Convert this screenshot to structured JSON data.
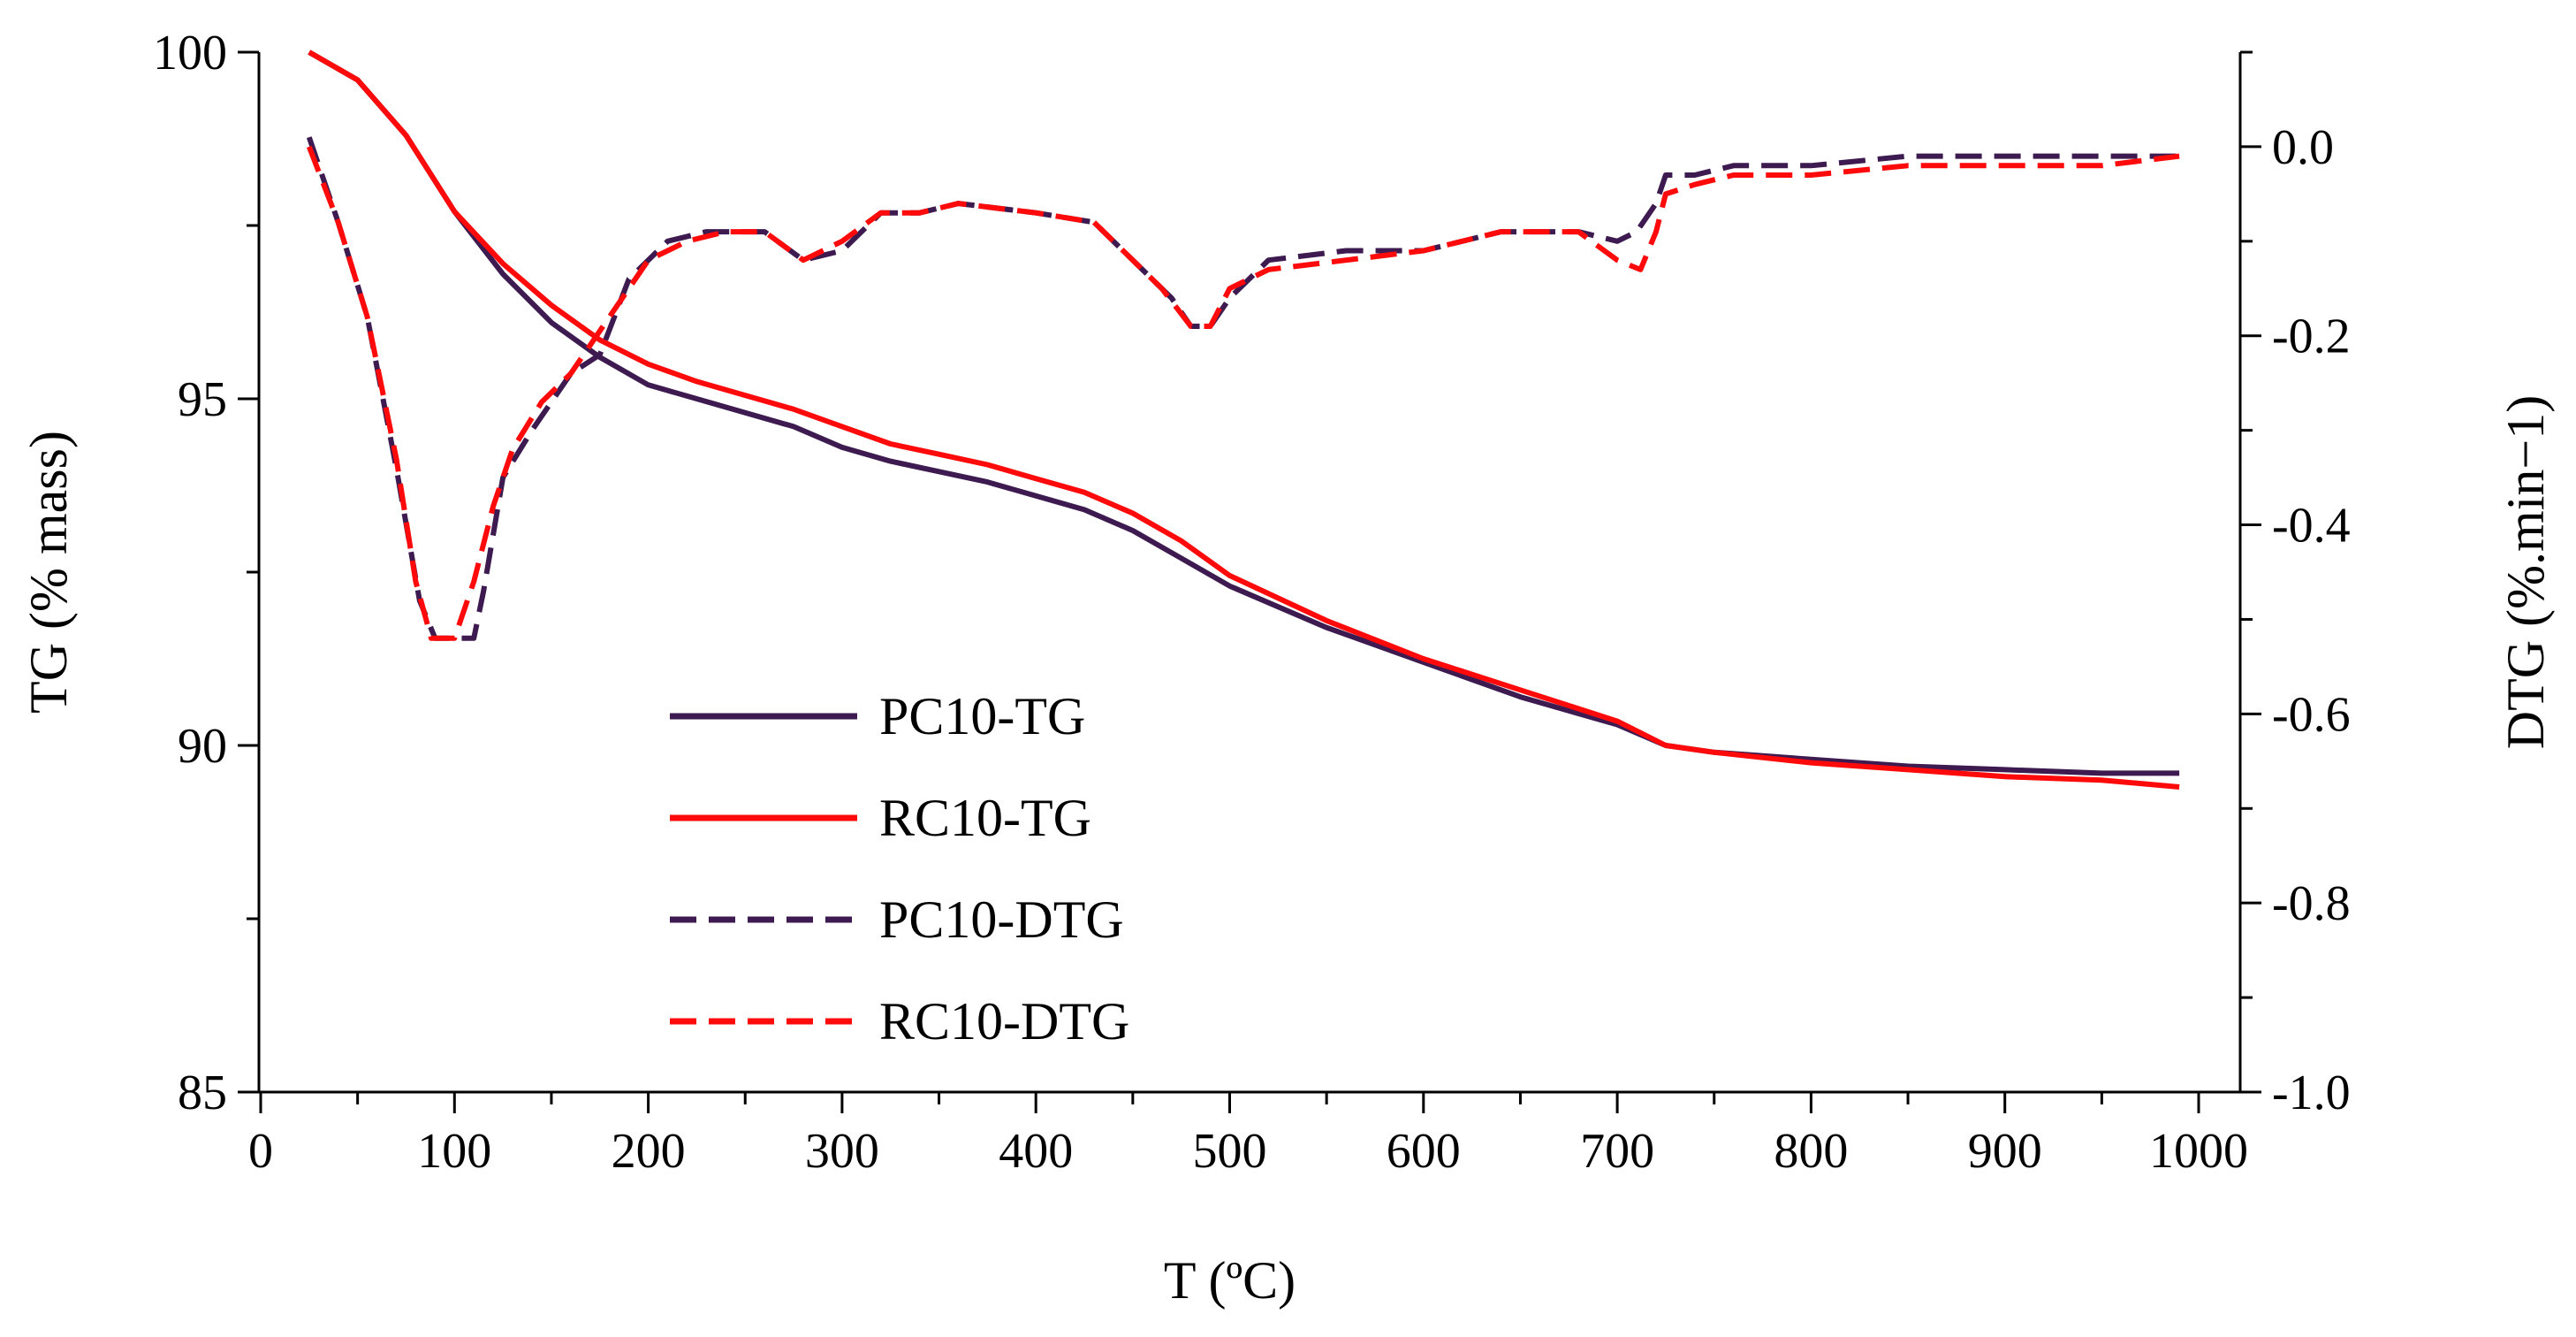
{
  "chart_data": {
    "type": "line",
    "title": "",
    "xlabel": "T (ºC)",
    "ylabel_left": "TG (% mass)",
    "ylabel_right": "DTG (%.min−1)",
    "xlim": [
      0,
      1000
    ],
    "ylim_left": [
      85,
      100
    ],
    "ylim_right": [
      -1.0,
      0.1
    ],
    "x_ticks": [
      "0",
      "100",
      "200",
      "300",
      "400",
      "500",
      "600",
      "700",
      "800",
      "900",
      "1000"
    ],
    "y_left_ticks": [
      "85",
      "90",
      "95",
      "100"
    ],
    "y_right_ticks": [
      "-1.0",
      "-0.8",
      "-0.6",
      "-0.4",
      "-0.2",
      "0.0"
    ],
    "legend_position": "center-left",
    "colors": {
      "PC10": "#3d1a4f",
      "RC10": "#ff0a0a"
    },
    "series": [
      {
        "name": "PC10-TG",
        "axis": "left",
        "style": "solid",
        "color": "#3d1a4f",
        "x": [
          25,
          50,
          75,
          100,
          125,
          150,
          175,
          200,
          225,
          250,
          275,
          300,
          325,
          350,
          375,
          400,
          425,
          450,
          475,
          500,
          550,
          600,
          650,
          700,
          725,
          750,
          800,
          850,
          900,
          950,
          990
        ],
        "y": [
          100.0,
          99.6,
          98.8,
          97.7,
          96.8,
          96.1,
          95.6,
          95.2,
          95.0,
          94.8,
          94.6,
          94.3,
          94.1,
          93.95,
          93.8,
          93.6,
          93.4,
          93.1,
          92.7,
          92.3,
          91.7,
          91.2,
          90.7,
          90.3,
          90.0,
          89.9,
          89.8,
          89.7,
          89.65,
          89.6,
          89.6
        ]
      },
      {
        "name": "RC10-TG",
        "axis": "left",
        "style": "solid",
        "color": "#ff0a0a",
        "x": [
          25,
          50,
          75,
          100,
          125,
          150,
          175,
          200,
          225,
          250,
          275,
          300,
          325,
          350,
          375,
          400,
          425,
          450,
          475,
          500,
          550,
          600,
          650,
          700,
          725,
          750,
          800,
          850,
          900,
          950,
          990
        ],
        "y": [
          100.0,
          99.6,
          98.8,
          97.7,
          96.95,
          96.35,
          95.85,
          95.5,
          95.25,
          95.05,
          94.85,
          94.6,
          94.35,
          94.2,
          94.05,
          93.85,
          93.65,
          93.35,
          92.95,
          92.45,
          91.8,
          91.25,
          90.8,
          90.35,
          90.0,
          89.9,
          89.75,
          89.65,
          89.55,
          89.5,
          89.4
        ]
      },
      {
        "name": "PC10-DTG",
        "axis": "right",
        "style": "dashed",
        "color": "#3d1a4f",
        "x": [
          25,
          40,
          55,
          70,
          82,
          90,
          100,
          110,
          115,
          125,
          140,
          160,
          175,
          190,
          210,
          230,
          260,
          280,
          300,
          320,
          340,
          360,
          400,
          430,
          450,
          470,
          480,
          490,
          500,
          520,
          560,
          600,
          640,
          680,
          700,
          710,
          720,
          725,
          740,
          760,
          800,
          850,
          900,
          950,
          990
        ],
        "y": [
          0.01,
          -0.08,
          -0.18,
          -0.34,
          -0.48,
          -0.52,
          -0.52,
          -0.52,
          -0.47,
          -0.35,
          -0.3,
          -0.24,
          -0.22,
          -0.14,
          -0.1,
          -0.09,
          -0.09,
          -0.12,
          -0.11,
          -0.07,
          -0.07,
          -0.06,
          -0.07,
          -0.08,
          -0.12,
          -0.16,
          -0.19,
          -0.19,
          -0.16,
          -0.12,
          -0.11,
          -0.11,
          -0.09,
          -0.09,
          -0.1,
          -0.09,
          -0.06,
          -0.03,
          -0.03,
          -0.02,
          -0.02,
          -0.01,
          -0.01,
          -0.01,
          -0.01
        ]
      },
      {
        "name": "RC10-DTG",
        "axis": "right",
        "style": "dashed",
        "color": "#ff0a0a",
        "x": [
          25,
          40,
          55,
          70,
          80,
          88,
          100,
          110,
          120,
          130,
          145,
          160,
          180,
          200,
          220,
          240,
          260,
          280,
          300,
          320,
          340,
          360,
          400,
          430,
          450,
          465,
          480,
          490,
          500,
          520,
          560,
          600,
          640,
          680,
          700,
          712,
          720,
          725,
          740,
          760,
          800,
          850,
          900,
          950,
          990
        ],
        "y": [
          0.0,
          -0.08,
          -0.18,
          -0.33,
          -0.46,
          -0.52,
          -0.52,
          -0.46,
          -0.38,
          -0.32,
          -0.27,
          -0.24,
          -0.18,
          -0.12,
          -0.1,
          -0.09,
          -0.09,
          -0.12,
          -0.1,
          -0.07,
          -0.07,
          -0.06,
          -0.07,
          -0.08,
          -0.12,
          -0.15,
          -0.19,
          -0.19,
          -0.15,
          -0.13,
          -0.12,
          -0.11,
          -0.09,
          -0.09,
          -0.12,
          -0.13,
          -0.09,
          -0.05,
          -0.04,
          -0.03,
          -0.03,
          -0.02,
          -0.02,
          -0.02,
          -0.01
        ]
      }
    ]
  }
}
